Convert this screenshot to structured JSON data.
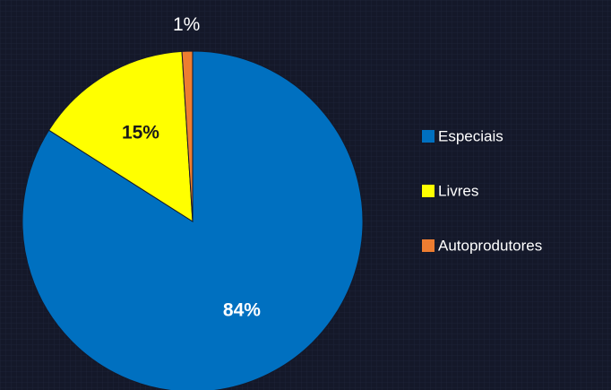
{
  "chart_data": {
    "type": "pie",
    "categories": [
      "Especiais",
      "Livres",
      "Autoprodutores"
    ],
    "values": [
      84,
      15,
      1
    ],
    "value_labels": [
      "84%",
      "15%",
      "1%"
    ],
    "colors": [
      "#0070c0",
      "#ffff00",
      "#ed7d31"
    ],
    "legend": "right"
  }
}
